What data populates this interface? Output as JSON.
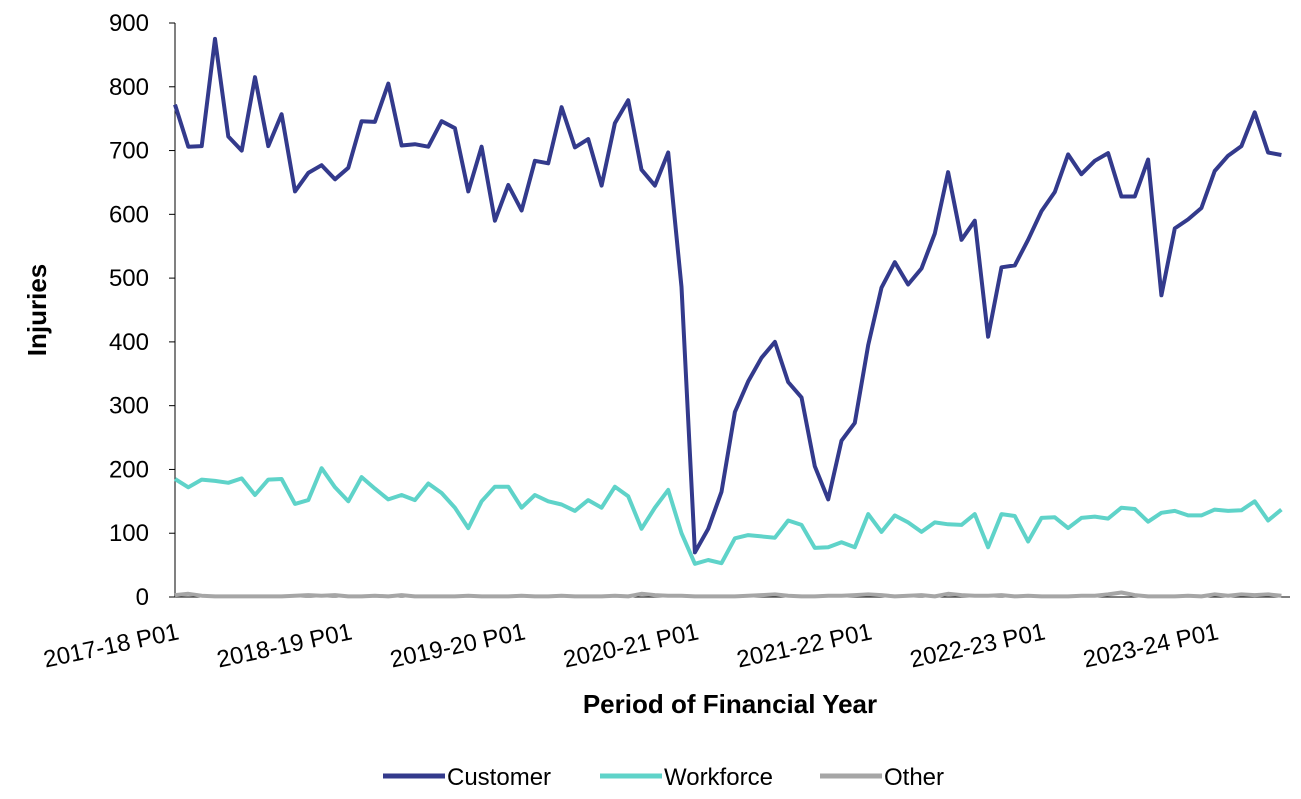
{
  "chart_data": {
    "type": "line",
    "x_label": "Period of Financial Year",
    "y_label": "Injuries",
    "categories": [
      "2017-18 P01",
      null,
      null,
      null,
      null,
      null,
      null,
      null,
      null,
      null,
      null,
      null,
      null,
      "2018-19 P01",
      null,
      null,
      null,
      null,
      null,
      null,
      null,
      null,
      null,
      null,
      null,
      null,
      "2019-20 P01",
      null,
      null,
      null,
      null,
      null,
      null,
      null,
      null,
      null,
      null,
      null,
      null,
      "2020-21 P01",
      null,
      null,
      null,
      null,
      null,
      null,
      null,
      null,
      null,
      null,
      null,
      null,
      "2021-22 P01",
      null,
      null,
      null,
      null,
      null,
      null,
      null,
      null,
      null,
      null,
      null,
      null,
      "2022-23 P01",
      null,
      null,
      null,
      null,
      null,
      null,
      null,
      null,
      null,
      null,
      null,
      null,
      "2023-24 P01",
      null,
      null,
      null,
      null,
      null
    ],
    "series": [
      {
        "name": "Customer",
        "color": "#333a8c",
        "values": [
          772,
          706,
          707,
          875,
          722,
          700,
          815,
          707,
          757,
          636,
          665,
          677,
          655,
          673,
          746,
          745,
          805,
          708,
          710,
          706,
          746,
          735,
          636,
          706,
          590,
          646,
          606,
          684,
          680,
          768,
          705,
          718,
          645,
          743,
          779,
          670,
          645,
          697,
          486,
          70,
          107,
          165,
          290,
          338,
          375,
          400,
          337,
          313,
          205,
          153,
          245,
          273,
          395,
          485,
          525,
          490,
          515,
          570,
          666,
          560,
          590,
          408,
          517,
          520,
          560,
          605,
          635,
          694,
          663,
          684,
          696,
          628,
          628,
          686,
          473,
          578,
          592,
          610,
          668,
          692,
          707,
          760,
          697,
          693
        ]
      },
      {
        "name": "Workforce",
        "color": "#5fd3c9",
        "values": [
          185,
          172,
          184,
          182,
          179,
          186,
          160,
          184,
          185,
          146,
          152,
          202,
          172,
          150,
          188,
          170,
          153,
          160,
          152,
          178,
          163,
          140,
          108,
          150,
          173,
          173,
          140,
          160,
          150,
          145,
          135,
          152,
          140,
          173,
          158,
          107,
          140,
          168,
          100,
          52,
          58,
          53,
          92,
          97,
          95,
          93,
          120,
          113,
          77,
          78,
          86,
          78,
          130,
          102,
          128,
          117,
          102,
          117,
          114,
          113,
          130,
          78,
          130,
          127,
          87,
          124,
          125,
          108,
          124,
          126,
          123,
          140,
          138,
          118,
          132,
          135,
          128,
          128,
          137,
          135,
          136,
          150,
          120,
          137
        ]
      },
      {
        "name": "Other",
        "color": "#a6a6a6",
        "values": [
          3,
          5,
          2,
          1,
          1,
          1,
          1,
          1,
          1,
          2,
          3,
          2,
          3,
          1,
          1,
          2,
          1,
          3,
          1,
          1,
          1,
          1,
          2,
          1,
          1,
          1,
          2,
          1,
          1,
          2,
          1,
          1,
          1,
          2,
          1,
          5,
          3,
          2,
          2,
          1,
          1,
          1,
          1,
          2,
          3,
          4,
          2,
          1,
          1,
          2,
          2,
          3,
          4,
          3,
          1,
          2,
          3,
          1,
          5,
          3,
          2,
          2,
          3,
          1,
          2,
          1,
          1,
          1,
          2,
          2,
          4,
          7,
          3,
          1,
          1,
          1,
          2,
          1,
          4,
          2,
          4,
          3,
          4,
          2
        ]
      }
    ],
    "ylim": [
      0,
      900
    ],
    "yticks": [
      0,
      100,
      200,
      300,
      400,
      500,
      600,
      700,
      800,
      900
    ],
    "legend": "bottom"
  }
}
